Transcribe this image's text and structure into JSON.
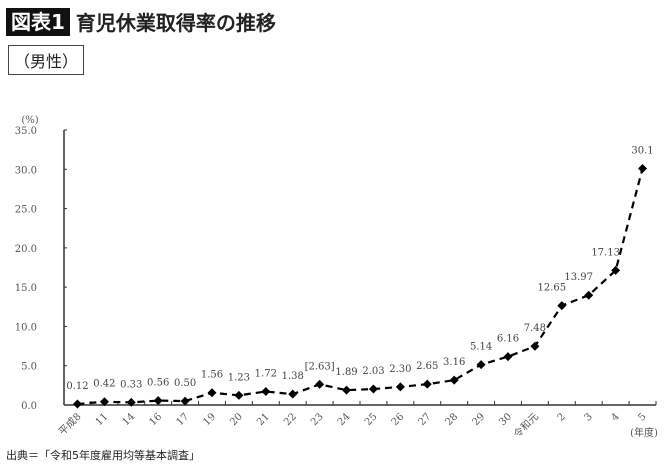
{
  "header": {
    "badge": "図表1",
    "title": "育児休業取得率の推移",
    "subtitle": "（男性）"
  },
  "source": "出典＝「令和5年度雇用均等基本調査」",
  "chart_data": {
    "type": "line",
    "title": "育児休業取得率の推移（男性）",
    "xlabel": "(年度)",
    "ylabel": "(%)",
    "ylim": [
      0,
      35
    ],
    "yticks": [
      "0.0",
      "5.0",
      "10.0",
      "15.0",
      "20.0",
      "25.0",
      "30.0",
      "35.0"
    ],
    "grid": false,
    "legend": "none",
    "line_style": "dashed",
    "marker": "diamond",
    "color": "#000000",
    "categories": [
      "平成8",
      "11",
      "14",
      "16",
      "17",
      "19",
      "20",
      "21",
      "22",
      "23",
      "24",
      "25",
      "26",
      "27",
      "28",
      "29",
      "30",
      "令和元",
      "2",
      "3",
      "4",
      "5"
    ],
    "values": [
      0.12,
      0.42,
      0.33,
      0.56,
      0.5,
      1.56,
      1.23,
      1.72,
      1.38,
      2.63,
      1.89,
      2.03,
      2.3,
      2.65,
      3.16,
      5.14,
      6.16,
      7.48,
      12.65,
      13.97,
      17.13,
      30.1
    ],
    "value_labels": [
      "0.12",
      "0.42",
      "0.33",
      "0.56",
      "0.50",
      "1.56",
      "1.23",
      "1.72",
      "1.38",
      "[2.63]",
      "1.89",
      "2.03",
      "2.30",
      "2.65",
      "3.16",
      "5.14",
      "6.16",
      "7.48",
      "12.65",
      "13.97",
      "17.13",
      "30.1"
    ]
  }
}
